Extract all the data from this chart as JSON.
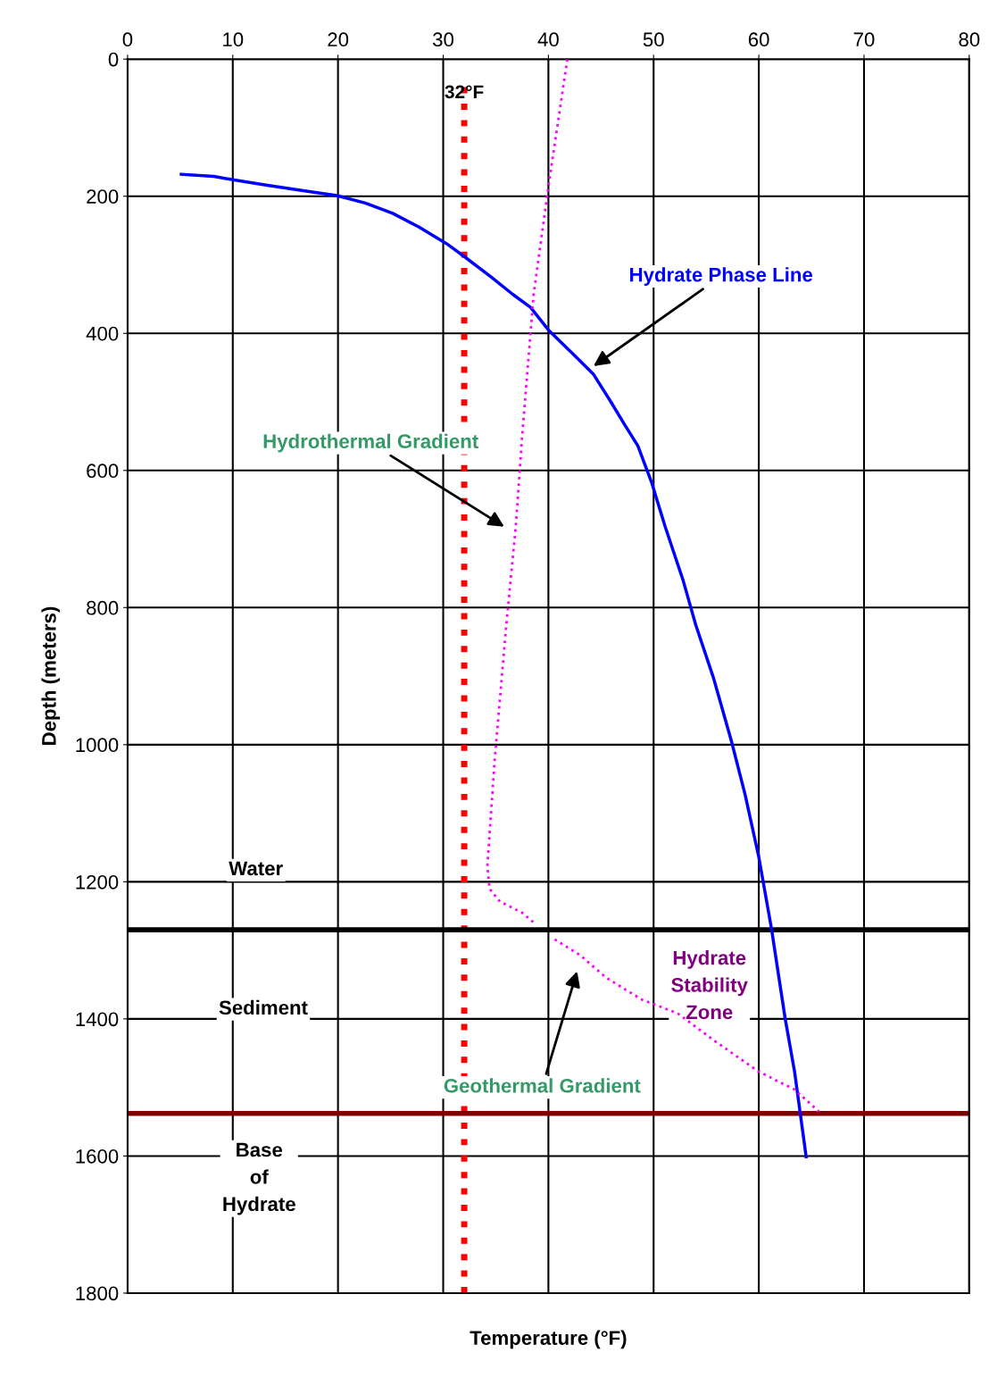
{
  "chart_data": {
    "type": "line",
    "xlabel": "Temperature (°F)",
    "ylabel": "Depth (meters)",
    "xlim": [
      0,
      80
    ],
    "xticks": [
      0,
      10,
      20,
      30,
      40,
      50,
      60,
      70,
      80
    ],
    "ylim": [
      1800,
      0
    ],
    "yticks": [
      0,
      200,
      400,
      600,
      800,
      1000,
      1200,
      1400,
      1600,
      1800
    ],
    "grid": true,
    "marker": "none",
    "series": [
      {
        "color": "#0000ff",
        "line_style": "solid",
        "x": [
          5.1,
          8.2,
          10.0,
          13.3,
          16.7,
          19.9,
          22.6,
          25.2,
          27.7,
          30.3,
          32.0,
          34.5,
          36.6,
          38.3,
          40.0,
          42.2,
          44.3,
          45.9,
          47.2,
          48.5,
          49.8,
          51.1,
          52.8,
          54.0,
          55.7,
          57.4,
          58.7,
          60.0,
          61.2,
          62.5,
          63.4,
          64.5
        ],
        "values": [
          168,
          171,
          176,
          184,
          192,
          199,
          210,
          225,
          245,
          269,
          288,
          317,
          343,
          362,
          395,
          428,
          460,
          499,
          532,
          564,
          617,
          682,
          760,
          825,
          903,
          995,
          1073,
          1164,
          1268,
          1399,
          1477,
          1601
        ]
      },
      {
        "color": "#ff00ff",
        "line_style": "dotted",
        "x": [
          41.8,
          40.0,
          38.6,
          37.5,
          36.9,
          36.0,
          34.9,
          34.2,
          34.4,
          35.4,
          37.5,
          38.8
        ],
        "values": [
          0,
          186,
          343,
          551,
          682,
          825,
          1021,
          1177,
          1210,
          1229,
          1245,
          1262
        ]
      },
      {
        "color": "#ff00ff",
        "line_style": "dotted",
        "x": [
          40.6,
          43.0,
          45.5,
          48.9,
          52.3,
          55.7,
          60.0,
          63.4,
          65.7
        ],
        "values": [
          1284,
          1307,
          1340,
          1372,
          1392,
          1431,
          1477,
          1503,
          1535
        ]
      }
    ],
    "ref_lines": [
      {
        "axis": "x",
        "value": 32,
        "label": "32°F",
        "color": "#ff0000",
        "line_style": "dotted"
      },
      {
        "axis": "y",
        "value": 1270,
        "color": "#000000",
        "line_style": "solid"
      },
      {
        "axis": "y",
        "value": 1538,
        "color": "#800000",
        "line_style": "solid"
      }
    ],
    "annotations": [
      "Hydrate Phase Line",
      "Hydrothermal Gradient",
      "Hydrate\nStability\nZone",
      "Geothermal Gradient",
      "Water",
      "Sediment",
      "Base\nof\nHydrate"
    ]
  }
}
